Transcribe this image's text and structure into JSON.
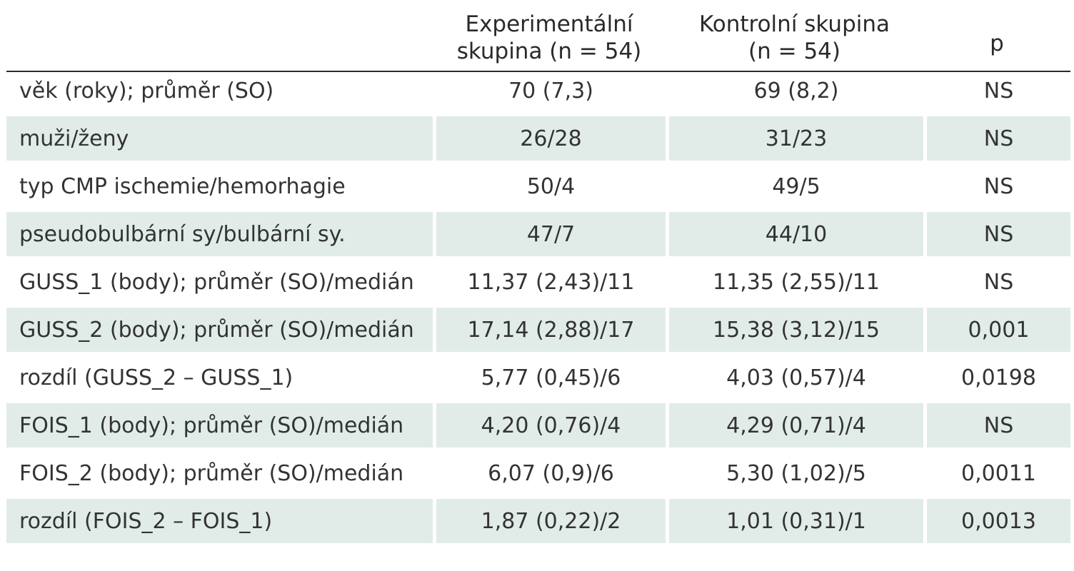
{
  "table": {
    "headers": [
      [
        ""
      ],
      [
        "Experimentální",
        "skupina (n = 54)"
      ],
      [
        "Kontrolní skupina",
        "(n = 54)"
      ],
      [
        "p"
      ]
    ],
    "rows": [
      [
        "věk (roky); průměr (SO)",
        "70 (7,3)",
        "69 (8,2)",
        "NS"
      ],
      [
        "muži/ženy",
        "26/28",
        "31/23",
        "NS"
      ],
      [
        "typ CMP ischemie/hemorhagie",
        "50/4",
        "49/5",
        "NS"
      ],
      [
        "pseudobulbární sy/bulbární sy.",
        "47/7",
        "44/10",
        "NS"
      ],
      [
        "GUSS_1 (body); průměr (SO)/medián",
        "11,37 (2,43)/11",
        "11,35 (2,55)/11",
        "NS"
      ],
      [
        "GUSS_2 (body); průměr (SO)/medián",
        "17,14 (2,88)/17",
        "15,38 (3,12)/15",
        "0,001"
      ],
      [
        "rozdíl (GUSS_2 – GUSS_1)",
        "5,77 (0,45)/6",
        "4,03 (0,57)/4",
        "0,0198"
      ],
      [
        "FOIS_1 (body); průměr (SO)/medián",
        "4,20 (0,76)/4",
        "4,29 (0,71)/4",
        "NS"
      ],
      [
        "FOIS_2 (body); průměr (SO)/medián",
        "6,07 (0,9)/6",
        "5,30 (1,02)/5",
        "0,0011"
      ],
      [
        "rozdíl (FOIS_2 – FOIS_1)",
        "1,87 (0,22)/2",
        "1,01 (0,31)/1",
        "0,0013"
      ]
    ]
  },
  "colors": {
    "shaded_row": "#e1ece8",
    "rule": "#2a2a2a",
    "text": "#333333"
  }
}
